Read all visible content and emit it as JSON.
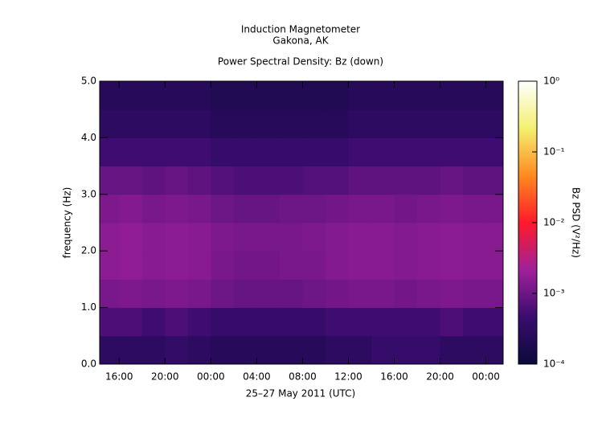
{
  "chart_data": {
    "type": "heatmap",
    "title": "Induction Magnetometer",
    "subtitle": "Gakona, AK",
    "plot_title": "Power Spectral Density: Bz (down)",
    "x_label": "25–27 May 2011 (UTC)",
    "y_label": "frequency (Hz)",
    "colorbar_label": "Bz PSD (V²/Hz)",
    "x": [
      15,
      17,
      19,
      21,
      23,
      25,
      27,
      29,
      31,
      33,
      35,
      37,
      39,
      41,
      43,
      45,
      47,
      49
    ],
    "y": [
      0.25,
      0.75,
      1.25,
      1.75,
      2.25,
      2.75,
      3.25,
      3.75,
      4.25,
      4.75
    ],
    "z": [
      [
        0.0003,
        0.0003,
        0.0003,
        0.00035,
        0.0003,
        0.00025,
        0.00025,
        0.00025,
        0.00025,
        0.00025,
        0.0003,
        0.0003,
        0.0004,
        0.0004,
        0.0004,
        0.0003,
        0.0003,
        0.0003
      ],
      [
        0.0006,
        0.0006,
        0.0005,
        0.0006,
        0.0005,
        0.0004,
        0.0004,
        0.0004,
        0.0004,
        0.0004,
        0.0005,
        0.0005,
        0.0005,
        0.0005,
        0.0005,
        0.0006,
        0.0005,
        0.0005
      ],
      [
        0.0012,
        0.0013,
        0.0012,
        0.0013,
        0.0012,
        0.001,
        0.0009,
        0.0009,
        0.0009,
        0.001,
        0.0011,
        0.0012,
        0.0012,
        0.0011,
        0.0012,
        0.0013,
        0.0012,
        0.0012
      ],
      [
        0.0016,
        0.0017,
        0.0015,
        0.0016,
        0.0015,
        0.0012,
        0.0011,
        0.0011,
        0.0012,
        0.0012,
        0.0014,
        0.0015,
        0.0015,
        0.0014,
        0.0015,
        0.0016,
        0.0015,
        0.0015
      ],
      [
        0.0016,
        0.0017,
        0.0015,
        0.0016,
        0.0015,
        0.0013,
        0.0012,
        0.0012,
        0.0012,
        0.0013,
        0.0014,
        0.0015,
        0.0015,
        0.0014,
        0.0015,
        0.0016,
        0.0015,
        0.0015
      ],
      [
        0.0013,
        0.0014,
        0.0012,
        0.0013,
        0.0012,
        0.001,
        0.0009,
        0.0009,
        0.001,
        0.001,
        0.0011,
        0.0012,
        0.0012,
        0.0011,
        0.0012,
        0.0013,
        0.0012,
        0.0012
      ],
      [
        0.0009,
        0.0009,
        0.0008,
        0.0009,
        0.0008,
        0.0007,
        0.0006,
        0.0006,
        0.0006,
        0.0007,
        0.0007,
        0.0008,
        0.0008,
        0.0008,
        0.0008,
        0.0009,
        0.0008,
        0.0008
      ],
      [
        0.0005,
        0.0005,
        0.0005,
        0.0005,
        0.0005,
        0.0004,
        0.0004,
        0.0004,
        0.0004,
        0.0004,
        0.0004,
        0.0005,
        0.0005,
        0.0005,
        0.0005,
        0.0005,
        0.0005,
        0.0005
      ],
      [
        0.0003,
        0.0003,
        0.0003,
        0.0003,
        0.0003,
        0.00025,
        0.00025,
        0.00025,
        0.00025,
        0.00025,
        0.00025,
        0.0003,
        0.0003,
        0.0003,
        0.0003,
        0.0003,
        0.0003,
        0.0003
      ],
      [
        0.00025,
        0.00025,
        0.00025,
        0.00025,
        0.00025,
        0.0002,
        0.0002,
        0.0002,
        0.0002,
        0.0002,
        0.0002,
        0.00025,
        0.00025,
        0.00025,
        0.00025,
        0.00025,
        0.00025,
        0.00025
      ]
    ],
    "x_cell_width": 2,
    "y_cell_height": 0.5,
    "xlim": [
      14.3,
      49.5
    ],
    "xticks": [
      {
        "value": 16,
        "label": "16:00"
      },
      {
        "value": 20,
        "label": "20:00"
      },
      {
        "value": 24,
        "label": "00:00"
      },
      {
        "value": 28,
        "label": "04:00"
      },
      {
        "value": 32,
        "label": "08:00"
      },
      {
        "value": 36,
        "label": "12:00"
      },
      {
        "value": 40,
        "label": "16:00"
      },
      {
        "value": 44,
        "label": "20:00"
      },
      {
        "value": 48,
        "label": "00:00"
      }
    ],
    "ylim": [
      0,
      5
    ],
    "yticks": [
      {
        "value": 0,
        "label": "0.0"
      },
      {
        "value": 1,
        "label": "1.0"
      },
      {
        "value": 2,
        "label": "2.0"
      },
      {
        "value": 3,
        "label": "3.0"
      },
      {
        "value": 4,
        "label": "4.0"
      },
      {
        "value": 5,
        "label": "5.0"
      }
    ],
    "zlim": [
      0.0001,
      1
    ],
    "zscale": "log",
    "zticks": [
      {
        "value": 0.0001,
        "label": "10⁻⁴"
      },
      {
        "value": 0.001,
        "label": "10⁻³"
      },
      {
        "value": 0.01,
        "label": "10⁻²"
      },
      {
        "value": 0.1,
        "label": "10⁻¹"
      },
      {
        "value": 1,
        "label": "10⁰"
      }
    ],
    "colormap": [
      "#0c0a3a",
      "#3a0c70",
      "#a0209a",
      "#ff1a2a",
      "#ff8a20",
      "#f4f070",
      "#ffffff"
    ]
  }
}
